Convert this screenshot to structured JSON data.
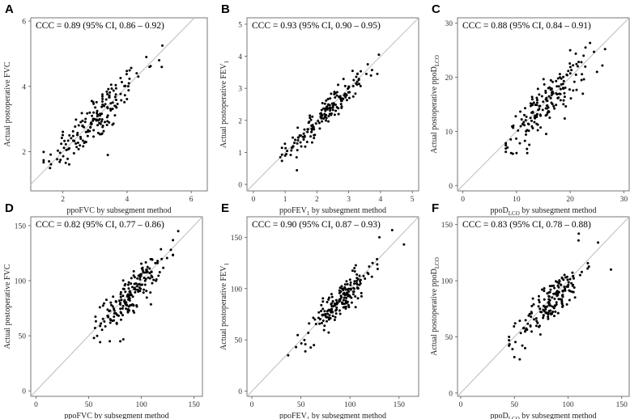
{
  "figure": {
    "panels": [
      "A",
      "B",
      "C",
      "D",
      "E",
      "F"
    ]
  },
  "chart_data": [
    {
      "type": "scatter",
      "panel": "A",
      "title": "CCC = 0.89 (95% CI, 0.86 – 0.92)",
      "xlabel": "ppoFVC by subsegment method",
      "xlabel_parts": [
        "ppoFVC by subsegment method"
      ],
      "ylabel": "Actual postoperative FVC",
      "ylabel_parts": [
        "Actual postoperative FVC"
      ],
      "xlim": [
        1,
        6.5
      ],
      "ylim": [
        0.8,
        6.1
      ],
      "xticks": [
        2,
        4,
        6
      ],
      "yticks": [
        2,
        4,
        6
      ],
      "identity_line": true,
      "cluster": {
        "center": [
          3.0,
          3.0
        ],
        "slope": 0.9,
        "xsd": 0.75,
        "noise": 0.38,
        "n": 170,
        "xmin": 1.4,
        "xmax": 5.2
      },
      "points": [
        [
          5.1,
          5.25
        ],
        [
          5.0,
          4.8
        ],
        [
          4.6,
          4.9
        ],
        [
          4.7,
          4.6
        ],
        [
          3.4,
          1.9
        ],
        [
          4.3,
          4.4
        ],
        [
          1.6,
          1.5
        ]
      ]
    },
    {
      "type": "scatter",
      "panel": "B",
      "title": "CCC = 0.93 (95% CI, 0.90 – 0.95)",
      "xlabel": "ppoFEV1 by subsegment method",
      "xlabel_parts": [
        "ppoFEV",
        "1",
        " by subsegment method"
      ],
      "ylabel": "Actual postoperative FEV1",
      "ylabel_parts": [
        "Actual postoperative FEV",
        "1"
      ],
      "xlim": [
        -0.2,
        5.2
      ],
      "ylim": [
        -0.2,
        5.2
      ],
      "xticks": [
        0,
        1,
        2,
        3,
        4,
        5
      ],
      "yticks": [
        0,
        1,
        2,
        3,
        4,
        5
      ],
      "identity_line": true,
      "cluster": {
        "center": [
          2.3,
          2.25
        ],
        "slope": 0.95,
        "xsd": 0.6,
        "noise": 0.22,
        "n": 175,
        "xmin": 0.9,
        "xmax": 3.9
      },
      "points": [
        [
          3.95,
          4.05
        ],
        [
          3.9,
          3.45
        ],
        [
          3.7,
          3.4
        ],
        [
          0.85,
          0.85
        ],
        [
          1.0,
          0.9
        ],
        [
          3.6,
          3.75
        ]
      ]
    },
    {
      "type": "scatter",
      "panel": "C",
      "title": "CCC = 0.88 (95% CI, 0.84 – 0.91)",
      "xlabel": "ppoDLCO by subsegment method",
      "xlabel_parts": [
        "ppoD",
        "LCO",
        " by subsegment method"
      ],
      "ylabel": "Actual postoperative ppoDLCO",
      "ylabel_parts": [
        "Actual postoperative ppoD",
        "LCO"
      ],
      "xlim": [
        -1,
        31
      ],
      "ylim": [
        -1,
        31
      ],
      "xticks": [
        0,
        10,
        20,
        30
      ],
      "yticks": [
        0,
        10,
        20,
        30
      ],
      "identity_line": true,
      "cluster": {
        "center": [
          15.5,
          15.0
        ],
        "slope": 0.9,
        "xsd": 3.8,
        "noise": 2.0,
        "n": 175,
        "xmin": 8,
        "xmax": 26
      },
      "points": [
        [
          26.5,
          25.2
        ],
        [
          20.0,
          25.0
        ],
        [
          22.5,
          24.0
        ],
        [
          9.0,
          6.0
        ],
        [
          10.0,
          6.0
        ],
        [
          12.0,
          6.0
        ],
        [
          25.0,
          21.0
        ]
      ]
    },
    {
      "type": "scatter",
      "panel": "D",
      "title": "CCC = 0.82 (95% CI, 0.77 – 0.86)",
      "xlabel": "ppoFVC by subsegment method",
      "xlabel_parts": [
        "ppoFVC by subsegment method"
      ],
      "ylabel": "Actual postoperative FVC",
      "ylabel_parts": [
        "Actual postoperative FVC"
      ],
      "xlim": [
        -5,
        158
      ],
      "ylim": [
        -5,
        158
      ],
      "xticks": [
        0,
        50,
        100,
        150
      ],
      "yticks": [
        0,
        50,
        100,
        150
      ],
      "identity_line": true,
      "cluster": {
        "center": [
          90,
          88
        ],
        "slope": 0.92,
        "xsd": 14,
        "noise": 9,
        "n": 185,
        "xmin": 55,
        "xmax": 130
      },
      "points": [
        [
          135,
          145
        ],
        [
          128,
          128
        ],
        [
          80,
          45
        ],
        [
          70,
          45
        ],
        [
          56,
          57
        ]
      ]
    },
    {
      "type": "scatter",
      "panel": "E",
      "title": "CCC = 0.90 (95% CI, 0.87 – 0.93)",
      "xlabel": "ppoFEV1 by subsegment method",
      "xlabel_parts": [
        "ppoFEV",
        "1",
        " by subsegment method"
      ],
      "ylabel": "Actual postoperative FEV1",
      "ylabel_parts": [
        "Actual postoperative FEV",
        "1"
      ],
      "xlim": [
        -5,
        170
      ],
      "ylim": [
        -5,
        170
      ],
      "xticks": [
        0,
        50,
        100,
        150
      ],
      "yticks": [
        0,
        50,
        100,
        150
      ],
      "identity_line": true,
      "cluster": {
        "center": [
          90,
          88
        ],
        "slope": 0.95,
        "xsd": 17,
        "noise": 8,
        "n": 180,
        "xmin": 40,
        "xmax": 140
      },
      "points": [
        [
          143,
          157
        ],
        [
          155,
          143
        ],
        [
          37,
          35
        ],
        [
          45,
          43
        ],
        [
          130,
          150
        ]
      ]
    },
    {
      "type": "scatter",
      "panel": "F",
      "title": "CCC = 0.83 (95% CI, 0.78 – 0.88)",
      "xlabel": "ppoDLCO by subsegment method",
      "xlabel_parts": [
        "ppoD",
        "LCO",
        " by subsegment method"
      ],
      "ylabel": "Actual postoperative ppoDLCO",
      "ylabel_parts": [
        "Actual postoperative ppoD",
        "LCO"
      ],
      "xlim": [
        -3,
        157
      ],
      "ylim": [
        -3,
        157
      ],
      "xticks": [
        0,
        50,
        100,
        150
      ],
      "yticks": [
        0,
        50,
        100,
        150
      ],
      "identity_line": true,
      "cluster": {
        "center": [
          85,
          82
        ],
        "slope": 0.93,
        "xsd": 15,
        "noise": 9,
        "n": 175,
        "xmin": 45,
        "xmax": 135
      },
      "points": [
        [
          110,
          142
        ],
        [
          128,
          134
        ],
        [
          140,
          110
        ],
        [
          50,
          32
        ],
        [
          55,
          30
        ],
        [
          60,
          40
        ],
        [
          45,
          50
        ]
      ]
    }
  ]
}
